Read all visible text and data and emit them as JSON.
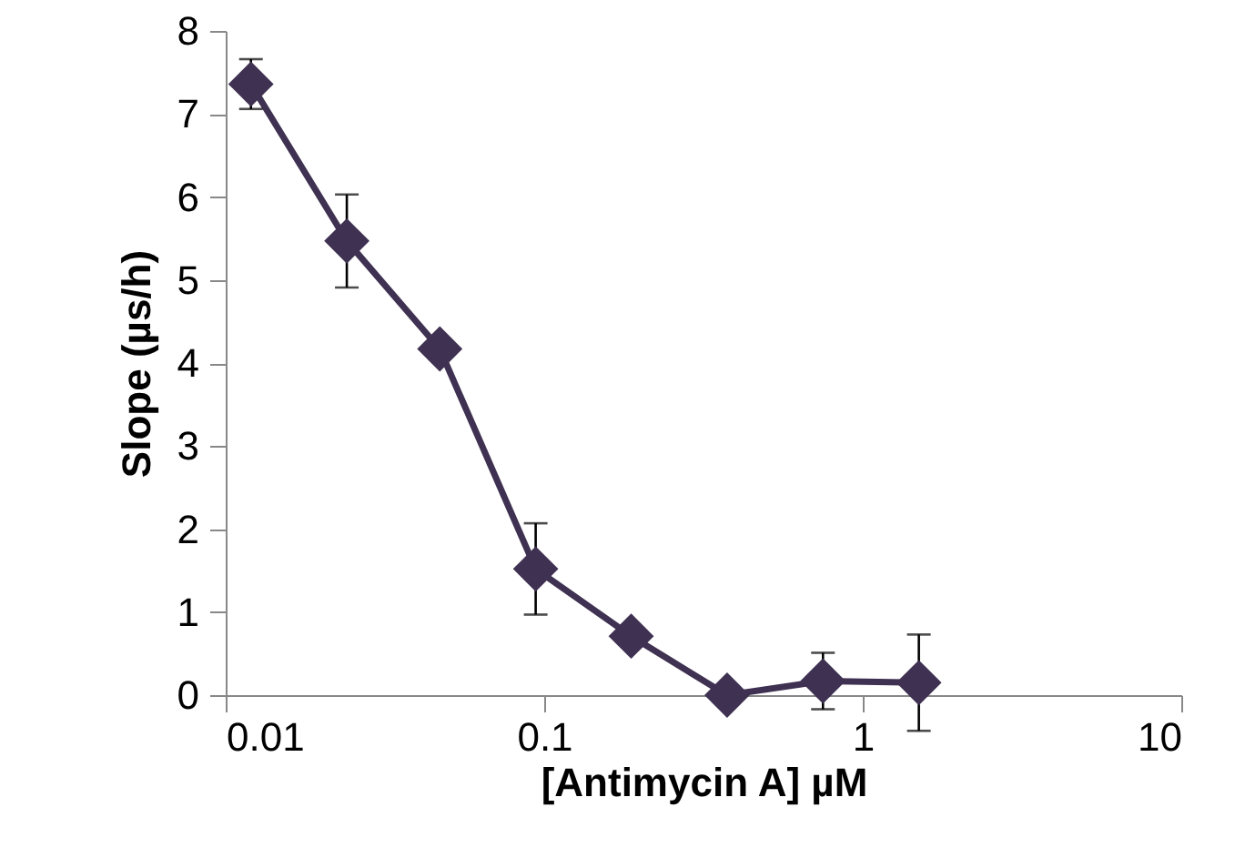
{
  "chart_data": {
    "type": "line",
    "xlabel": "[Antimycin A] µM",
    "ylabel": "Slope (µs/h)",
    "x": [
      0.012,
      0.024,
      0.047,
      0.094,
      0.1875,
      0.375,
      0.75,
      1.5
    ],
    "series": [
      {
        "color": "#3f3151",
        "values": [
          7.36,
          5.47,
          4.17,
          1.52,
          0.71,
          0.0,
          0.17,
          0.15
        ],
        "errors": [
          0.3,
          0.56,
          null,
          0.55,
          null,
          null,
          0.34,
          0.58
        ]
      }
    ],
    "log": "x",
    "xlim": [
      0.01,
      10
    ],
    "xticks": [
      0.01,
      0.1,
      1,
      10
    ],
    "ylim": [
      0,
      8
    ],
    "yticks": [
      0,
      1,
      2,
      3,
      4,
      5,
      6,
      7,
      8
    ],
    "grid": false,
    "marker": "diamond",
    "line_style": "solid"
  }
}
